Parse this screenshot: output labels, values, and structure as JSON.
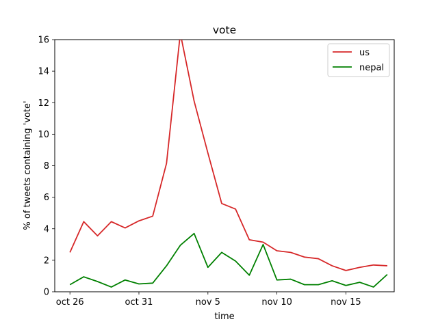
{
  "chart_data": {
    "type": "line",
    "title": "vote",
    "xlabel": "time",
    "ylabel": "% of tweets containing 'vote'",
    "ylim": [
      0,
      16
    ],
    "xlim": [
      -1.1,
      23.5
    ],
    "xticks": [
      {
        "value": 0,
        "label": "oct 26"
      },
      {
        "value": 5,
        "label": "oct 31"
      },
      {
        "value": 10,
        "label": "nov 5"
      },
      {
        "value": 15,
        "label": "nov 10"
      },
      {
        "value": 20,
        "label": "nov 15"
      }
    ],
    "yticks": [
      0,
      2,
      4,
      6,
      8,
      10,
      12,
      14,
      16
    ],
    "grid": false,
    "legend_position": "top-right",
    "x": [
      0,
      1,
      2,
      3,
      4,
      5,
      6,
      7,
      8,
      9,
      10,
      11,
      12,
      13,
      14,
      15,
      16,
      17,
      18,
      19,
      20,
      21,
      22,
      23
    ],
    "series": [
      {
        "name": "us",
        "color": "#d62728",
        "values": [
          2.5,
          4.45,
          3.55,
          4.45,
          4.05,
          4.5,
          4.8,
          8.15,
          16.4,
          12.1,
          8.8,
          5.6,
          5.25,
          3.3,
          3.15,
          2.6,
          2.5,
          2.2,
          2.1,
          1.65,
          1.35,
          1.55,
          1.7,
          1.65
        ]
      },
      {
        "name": "nepal",
        "color": "#008000",
        "values": [
          0.45,
          0.95,
          0.65,
          0.3,
          0.75,
          0.5,
          0.55,
          1.65,
          2.95,
          3.7,
          1.55,
          2.5,
          1.95,
          1.05,
          3.0,
          0.75,
          0.8,
          0.45,
          0.45,
          0.7,
          0.4,
          0.6,
          0.3,
          1.1
        ]
      }
    ]
  }
}
